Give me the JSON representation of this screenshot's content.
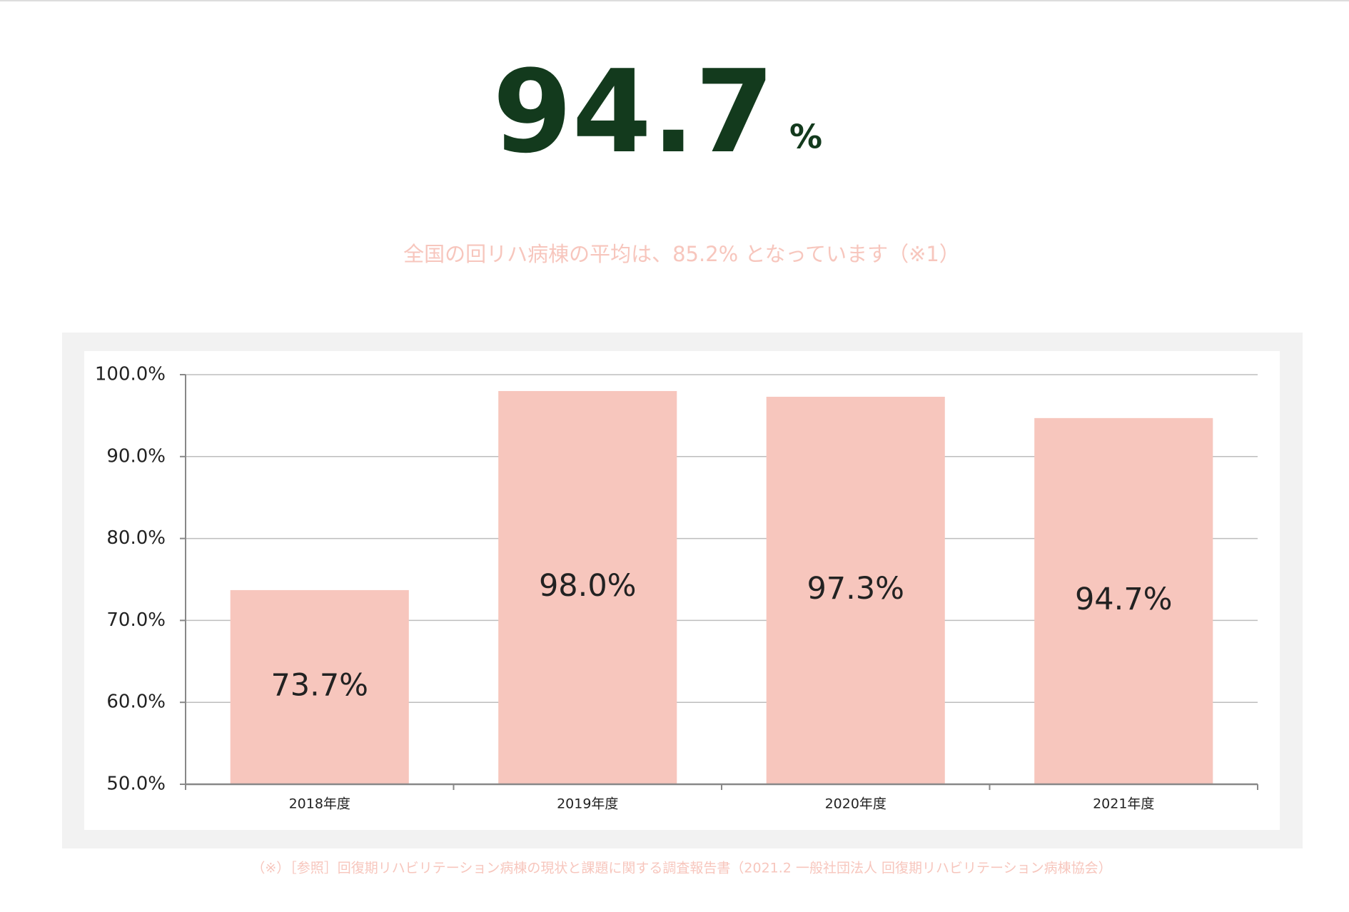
{
  "headline": {
    "value": "94.7",
    "unit": "%"
  },
  "subtitle": "全国の回リハ病棟の平均は、85.2% となっています（※1）",
  "chart_data": {
    "type": "bar",
    "categories": [
      "2018年度",
      "2019年度",
      "2020年度",
      "2021年度"
    ],
    "values": [
      73.7,
      98.0,
      97.3,
      94.7
    ],
    "value_labels": [
      "73.7%",
      "98.0%",
      "97.3%",
      "94.7%"
    ],
    "color": "#f7c6bd",
    "ylim": [
      50,
      100
    ],
    "yticks": [
      {
        "value": 50,
        "label": "50.0%"
      },
      {
        "value": 60,
        "label": "60.0%"
      },
      {
        "value": 70,
        "label": "70.0%"
      },
      {
        "value": 80,
        "label": "80.0%"
      },
      {
        "value": 90,
        "label": "90.0%"
      },
      {
        "value": 100,
        "label": "100.0%"
      }
    ],
    "grid": true
  },
  "footnote": "（※）［参照］回復期リハビリテーション病棟の現状と課題に関する調査報告書（2021.2 一般社団法人 回復期リハビリテーション病棟協会）"
}
